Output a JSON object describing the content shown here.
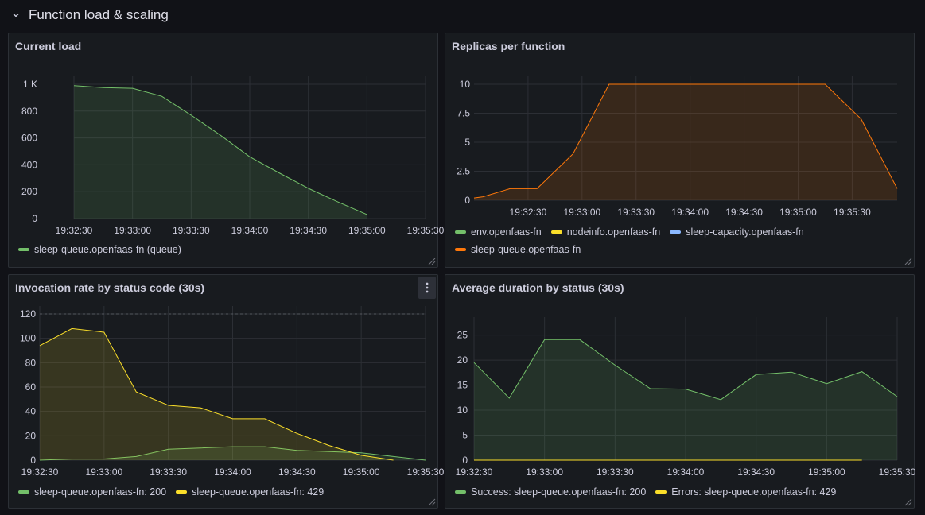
{
  "row": {
    "title": "Function load & scaling",
    "icon": "chevron-down-icon"
  },
  "colors": {
    "green": "#73bf69",
    "yellow": "#fade2a",
    "blue": "#8ab8ff",
    "orange": "#ff780a"
  },
  "panels": [
    {
      "title": "Current load",
      "chart_data": {
        "type": "area",
        "x": [
          "19:32:30",
          "19:32:45",
          "19:33:00",
          "19:33:15",
          "19:33:30",
          "19:33:45",
          "19:34:00",
          "19:34:15",
          "19:34:30",
          "19:34:45",
          "19:35:00"
        ],
        "xticks": [
          "19:32:30",
          "19:33:00",
          "19:33:30",
          "19:34:00",
          "19:34:30",
          "19:35:00",
          "19:35:30"
        ],
        "yticks": [
          "0",
          "200",
          "400",
          "600",
          "800",
          "1 K"
        ],
        "ylim": [
          0,
          1000
        ],
        "xlim": [
          "19:32:30",
          "19:35:30"
        ],
        "series": [
          {
            "name": "sleep-queue.openfaas-fn (queue)",
            "color": "#73bf69",
            "values": [
              990,
              975,
              970,
              910,
              770,
              620,
              460,
              340,
              225,
              125,
              30
            ]
          }
        ]
      },
      "legend": [
        {
          "label": "sleep-queue.openfaas-fn (queue)",
          "color": "#73bf69"
        }
      ]
    },
    {
      "title": "Replicas per function",
      "chart_data": {
        "type": "area",
        "x": [
          "19:32:00",
          "19:32:05",
          "19:32:20",
          "19:32:35",
          "19:32:55",
          "19:33:15",
          "19:35:15",
          "19:35:35",
          "19:35:55"
        ],
        "xticks": [
          "19:32:30",
          "19:33:00",
          "19:33:30",
          "19:34:00",
          "19:34:30",
          "19:35:00",
          "19:35:30"
        ],
        "yticks": [
          "0",
          "2.5",
          "5",
          "7.5",
          "10"
        ],
        "ylim": [
          0,
          10
        ],
        "xlim": [
          "19:32:00",
          "19:35:55"
        ],
        "series": [
          {
            "name": "sleep-queue.openfaas-fn",
            "color": "#ff780a",
            "values": [
              0.2,
              0.3,
              1,
              1,
              4,
              10,
              10,
              7,
              1
            ]
          }
        ]
      },
      "legend": [
        {
          "label": "env.openfaas-fn",
          "color": "#73bf69"
        },
        {
          "label": "nodeinfo.openfaas-fn",
          "color": "#fade2a"
        },
        {
          "label": "sleep-capacity.openfaas-fn",
          "color": "#8ab8ff"
        },
        {
          "label": "sleep-queue.openfaas-fn",
          "color": "#ff780a"
        }
      ]
    },
    {
      "title": "Invocation rate by status code (30s)",
      "chart_data": {
        "type": "area",
        "x": [
          "19:32:30",
          "19:32:45",
          "19:33:00",
          "19:33:15",
          "19:33:30",
          "19:33:45",
          "19:34:00",
          "19:34:15",
          "19:34:30",
          "19:34:45",
          "19:35:00",
          "19:35:15",
          "19:35:30"
        ],
        "xticks": [
          "19:32:30",
          "19:33:00",
          "19:33:30",
          "19:34:00",
          "19:34:30",
          "19:35:00",
          "19:35:30"
        ],
        "yticks": [
          "0",
          "20",
          "40",
          "60",
          "80",
          "100",
          "120"
        ],
        "ylim": [
          0,
          120
        ],
        "xlim": [
          "19:32:30",
          "19:35:30"
        ],
        "series": [
          {
            "name": "sleep-queue.openfaas-fn: 200",
            "color": "#73bf69",
            "values": [
              0,
              1,
              1,
              3,
              9,
              10,
              11,
              11,
              8,
              7,
              6,
              3,
              0
            ]
          },
          {
            "name": "sleep-queue.openfaas-fn: 429",
            "color": "#fade2a",
            "values": [
              94,
              108,
              105,
              56,
              45,
              43,
              34,
              34,
              22,
              12,
              4,
              0,
              null
            ]
          }
        ]
      },
      "legend": [
        {
          "label": "sleep-queue.openfaas-fn: 200",
          "color": "#73bf69"
        },
        {
          "label": "sleep-queue.openfaas-fn: 429",
          "color": "#fade2a"
        }
      ]
    },
    {
      "title": "Average duration by status (30s)",
      "chart_data": {
        "type": "area",
        "x": [
          "19:32:30",
          "19:32:45",
          "19:33:00",
          "19:33:15",
          "19:33:30",
          "19:33:45",
          "19:34:00",
          "19:34:15",
          "19:34:30",
          "19:34:45",
          "19:35:00",
          "19:35:15",
          "19:35:30"
        ],
        "xticks": [
          "19:32:30",
          "19:33:00",
          "19:33:30",
          "19:34:00",
          "19:34:30",
          "19:35:00",
          "19:35:30"
        ],
        "yticks": [
          "0",
          "5",
          "10",
          "15",
          "20",
          "25"
        ],
        "ylim": [
          0,
          27
        ],
        "xlim": [
          "19:32:30",
          "19:35:30"
        ],
        "series": [
          {
            "name": "Success: sleep-queue.openfaas-fn: 200",
            "color": "#73bf69",
            "values": [
              19.5,
              12.4,
              24.1,
              24.1,
              19,
              14.3,
              14.2,
              12.1,
              17.1,
              17.6,
              15.3,
              17.7,
              12.7
            ]
          },
          {
            "name": "Errors: sleep-queue.openfaas-fn: 429",
            "color": "#fade2a",
            "values": [
              0,
              0,
              0,
              0,
              0,
              0,
              0,
              0,
              0,
              0,
              0,
              0,
              null
            ]
          }
        ]
      },
      "legend": [
        {
          "label": "Success: sleep-queue.openfaas-fn: 200",
          "color": "#73bf69"
        },
        {
          "label": "Errors: sleep-queue.openfaas-fn: 429",
          "color": "#fade2a"
        }
      ]
    }
  ]
}
